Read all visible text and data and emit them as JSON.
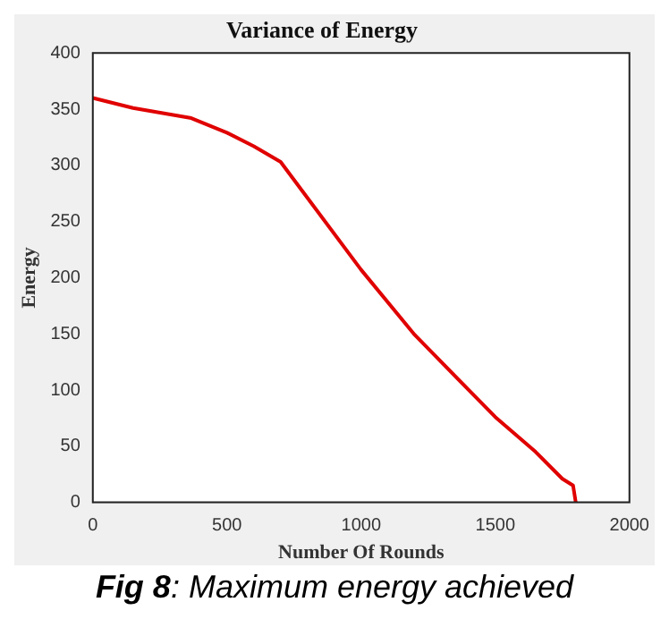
{
  "chart_data": {
    "type": "line",
    "title": "Variance of Energy",
    "xlabel": "Number Of Rounds",
    "ylabel": "Energy",
    "x": [
      0,
      150,
      367,
      500,
      600,
      700,
      800,
      1000,
      1200,
      1500,
      1650,
      1750,
      1790,
      1800
    ],
    "series": [
      {
        "color": "#e00000",
        "values": [
          360,
          351,
          342,
          329,
          317,
          303,
          271,
          207,
          149,
          76,
          45,
          21,
          15,
          0
        ]
      }
    ],
    "xlim": [
      0,
      2000
    ],
    "ylim": [
      0,
      400
    ],
    "xticks": [
      0,
      500,
      1000,
      1500,
      2000
    ],
    "yticks": [
      0,
      50,
      100,
      150,
      200,
      250,
      300,
      350,
      400
    ],
    "grid": false,
    "legend": false,
    "marker": "none",
    "line_style": "solid",
    "annotations": [
      "Fig 8: Maximum energy achieved"
    ]
  }
}
